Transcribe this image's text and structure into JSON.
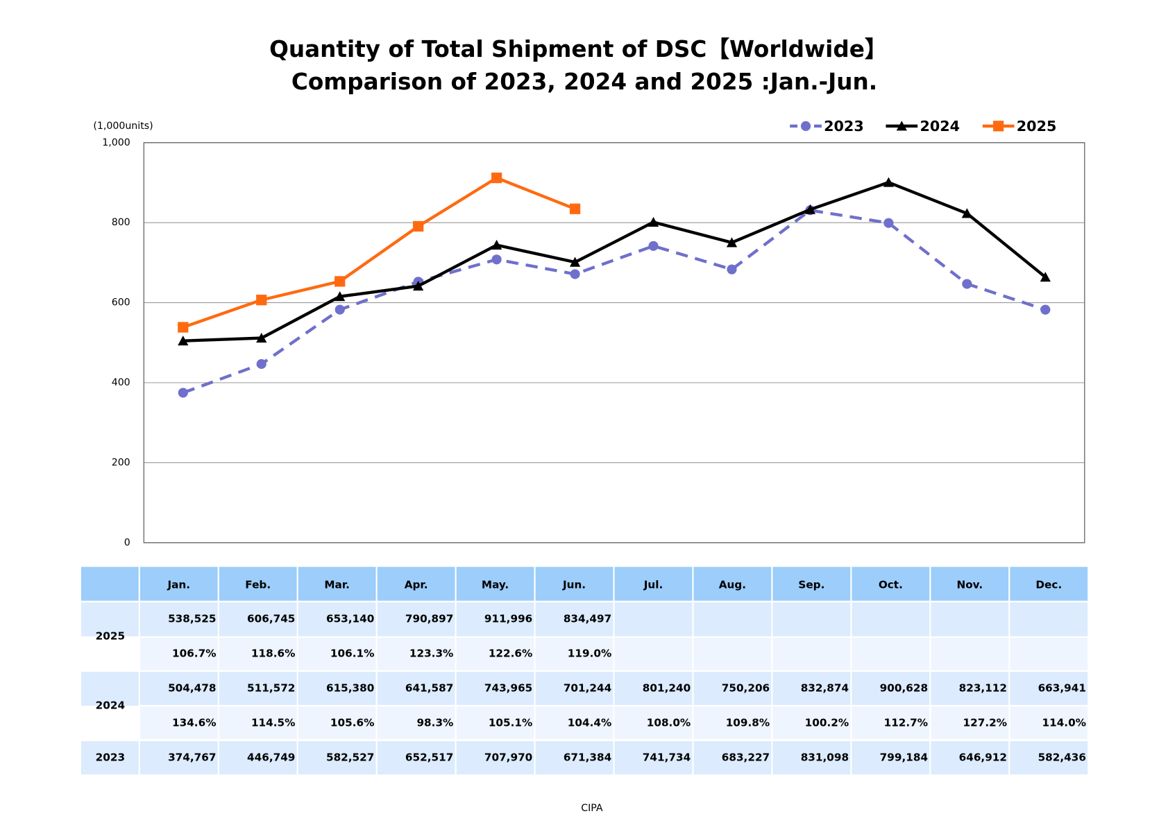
{
  "chart_data": {
    "type": "line",
    "title": "Quantity of Total Shipment of DSC【Worldwide】",
    "subtitle": "Comparison of 2023, 2024 and 2025 :Jan.-Jun.",
    "y_label": "(1,000units)",
    "source": "CIPA",
    "categories": [
      "Jan.",
      "Feb.",
      "Mar.",
      "Apr.",
      "May.",
      "Jun.",
      "Jul.",
      "Aug.",
      "Sep.",
      "Oct.",
      "Nov.",
      "Dec."
    ],
    "series": [
      {
        "name": "2023",
        "color": "#6f6fcc",
        "marker": "circle",
        "dash": true,
        "values": [
          374.767,
          446.749,
          582.527,
          652.517,
          707.97,
          671.384,
          741.734,
          683.227,
          831.098,
          799.184,
          646.912,
          582.436
        ],
        "value_labels": [
          "374,767",
          "446,749",
          "582,527",
          "652,517",
          "707,970",
          "671,384",
          "741,734",
          "683,227",
          "831,098",
          "799,184",
          "646,912",
          "582,436"
        ]
      },
      {
        "name": "2024",
        "color": "#000000",
        "marker": "triangle",
        "dash": false,
        "values": [
          504.478,
          511.572,
          615.38,
          641.587,
          743.965,
          701.244,
          801.24,
          750.206,
          832.874,
          900.628,
          823.112,
          663.941
        ],
        "value_labels": [
          "504,478",
          "511,572",
          "615,380",
          "641,587",
          "743,965",
          "701,244",
          "801,240",
          "750,206",
          "832,874",
          "900,628",
          "823,112",
          "663,941"
        ],
        "ratio_labels": [
          "134.6%",
          "114.5%",
          "105.6%",
          "98.3%",
          "105.1%",
          "104.4%",
          "108.0%",
          "109.8%",
          "100.2%",
          "112.7%",
          "127.2%",
          "114.0%"
        ]
      },
      {
        "name": "2025",
        "color": "#ff6a10",
        "marker": "square",
        "dash": false,
        "values": [
          538.525,
          606.745,
          653.14,
          790.897,
          911.996,
          834.497,
          null,
          null,
          null,
          null,
          null,
          null
        ],
        "value_labels": [
          "538,525",
          "606,745",
          "653,140",
          "790,897",
          "911,996",
          "834,497",
          null,
          null,
          null,
          null,
          null,
          null
        ],
        "ratio_labels": [
          "106.7%",
          "118.6%",
          "106.1%",
          "123.3%",
          "122.6%",
          "119.0%",
          null,
          null,
          null,
          null,
          null,
          null
        ]
      }
    ],
    "ylim": [
      0,
      1000
    ],
    "yticks": [
      0,
      200,
      400,
      600,
      800,
      {
        "value": 1000,
        "label": "1,000"
      }
    ],
    "grid": true,
    "legend": "top-right"
  }
}
